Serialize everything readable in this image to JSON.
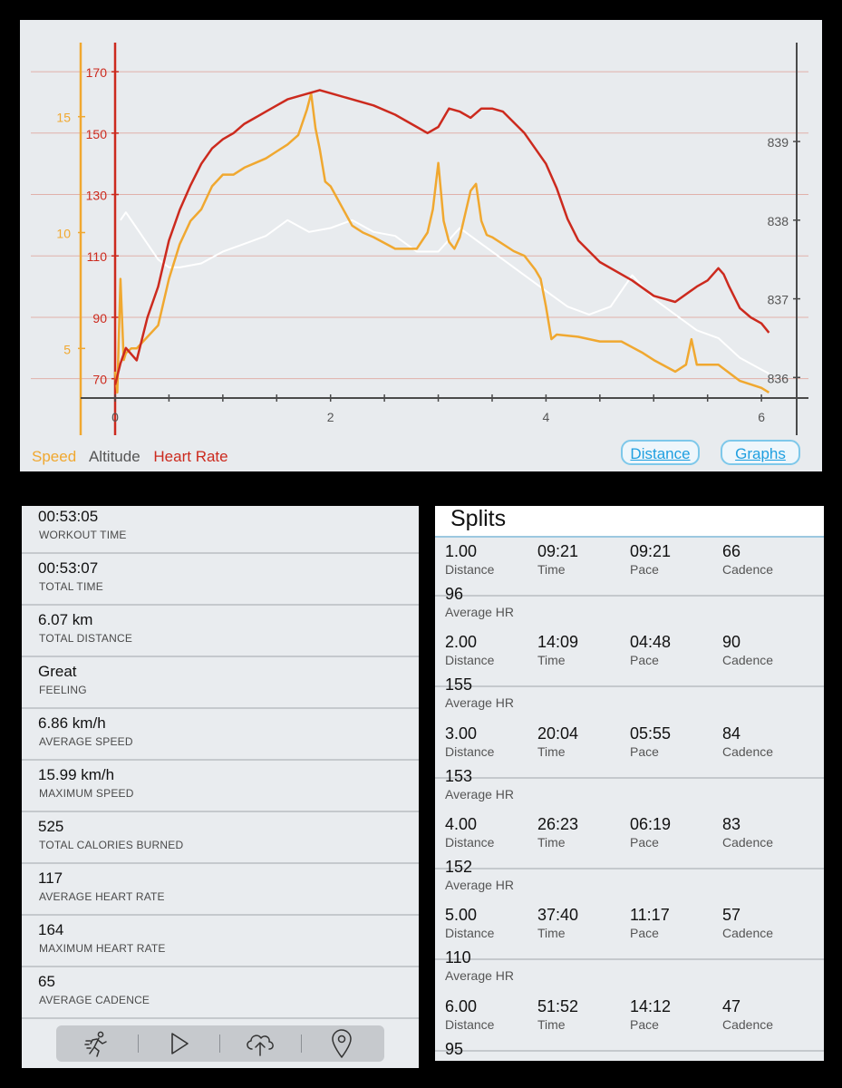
{
  "chart": {
    "legend": {
      "speed": "Speed",
      "altitude": "Altitude",
      "heart_rate": "Heart Rate"
    },
    "buttons": {
      "distance": "Distance",
      "graphs": "Graphs"
    },
    "colors": {
      "speed": "#f0a830",
      "altitude": "#ffffff",
      "heart_rate": "#cc2a1e",
      "axis": "#4a4a4a"
    }
  },
  "chart_data": {
    "type": "line",
    "xlabel": "",
    "xlim": [
      0,
      6.1
    ],
    "x_ticks": [
      "0",
      "2",
      "4",
      "6"
    ],
    "hr_axis": {
      "ticks": [
        "70",
        "90",
        "110",
        "130",
        "150",
        "170"
      ],
      "ylim": [
        64,
        178
      ]
    },
    "speed_axis": {
      "ticks": [
        "5",
        "10",
        "15"
      ],
      "ylim": [
        2.9,
        18.0
      ]
    },
    "altitude_axis": {
      "ticks": [
        "836",
        "837",
        "838",
        "839"
      ],
      "ylim": [
        835.75,
        840.2
      ]
    },
    "legend_position": "bottom-left",
    "grid": "horizontal",
    "series": [
      {
        "name": "Heart Rate",
        "color": "#cc2a1e",
        "x": [
          0,
          0.05,
          0.1,
          0.2,
          0.3,
          0.4,
          0.5,
          0.6,
          0.7,
          0.8,
          0.9,
          1.0,
          1.1,
          1.2,
          1.3,
          1.4,
          1.5,
          1.6,
          1.7,
          1.8,
          1.9,
          2.0,
          2.2,
          2.4,
          2.6,
          2.8,
          2.9,
          3.0,
          3.1,
          3.2,
          3.3,
          3.4,
          3.5,
          3.6,
          3.8,
          4.0,
          4.1,
          4.2,
          4.3,
          4.5,
          4.8,
          5.0,
          5.2,
          5.4,
          5.5,
          5.6,
          5.65,
          5.7,
          5.8,
          5.9,
          6.0,
          6.07
        ],
        "values": [
          68,
          75,
          80,
          76,
          90,
          100,
          115,
          125,
          133,
          140,
          145,
          148,
          150,
          153,
          155,
          157,
          159,
          161,
          162,
          163,
          164,
          163,
          161,
          159,
          156,
          152,
          150,
          152,
          158,
          157,
          155,
          158,
          158,
          157,
          150,
          140,
          132,
          122,
          115,
          108,
          102,
          97,
          95,
          100,
          102,
          106,
          104,
          100,
          93,
          90,
          88,
          85
        ]
      },
      {
        "name": "Speed",
        "color": "#f0a830",
        "x": [
          0,
          0.02,
          0.05,
          0.08,
          0.1,
          0.15,
          0.2,
          0.3,
          0.4,
          0.5,
          0.6,
          0.7,
          0.8,
          0.9,
          1.0,
          1.1,
          1.2,
          1.3,
          1.4,
          1.5,
          1.6,
          1.7,
          1.78,
          1.82,
          1.86,
          1.9,
          1.95,
          2.0,
          2.2,
          2.3,
          2.4,
          2.6,
          2.8,
          2.9,
          2.95,
          3.0,
          3.05,
          3.1,
          3.15,
          3.2,
          3.3,
          3.35,
          3.4,
          3.45,
          3.5,
          3.7,
          3.8,
          3.9,
          3.95,
          4.0,
          4.05,
          4.1,
          4.3,
          4.5,
          4.7,
          4.9,
          5.0,
          5.2,
          5.3,
          5.35,
          5.4,
          5.6,
          5.8,
          6.0,
          6.07
        ],
        "values": [
          4.0,
          3.1,
          8.0,
          4.5,
          4.8,
          5.0,
          5.0,
          5.5,
          6.0,
          8.0,
          9.5,
          10.5,
          11.0,
          12.0,
          12.5,
          12.5,
          12.8,
          13.0,
          13.2,
          13.5,
          13.8,
          14.2,
          15.3,
          16.0,
          14.5,
          13.6,
          12.2,
          12.0,
          10.3,
          10.0,
          9.8,
          9.3,
          9.3,
          10.0,
          11.0,
          13.0,
          10.5,
          9.6,
          9.3,
          9.8,
          11.8,
          12.1,
          10.5,
          9.9,
          9.8,
          9.2,
          9.0,
          8.4,
          8.0,
          6.8,
          5.4,
          5.6,
          5.5,
          5.3,
          5.3,
          4.8,
          4.5,
          4.0,
          4.3,
          5.4,
          4.3,
          4.3,
          3.6,
          3.3,
          3.1
        ]
      },
      {
        "name": "Altitude",
        "color": "#ffffff",
        "x": [
          0.05,
          0.1,
          0.2,
          0.3,
          0.4,
          0.5,
          0.6,
          0.8,
          1.0,
          1.2,
          1.4,
          1.6,
          1.8,
          2.0,
          2.2,
          2.4,
          2.6,
          2.8,
          3.0,
          3.2,
          3.4,
          3.6,
          3.8,
          4.0,
          4.2,
          4.4,
          4.6,
          4.8,
          5.0,
          5.2,
          5.4,
          5.6,
          5.8,
          6.0,
          6.07
        ],
        "values": [
          838.0,
          838.1,
          837.9,
          837.7,
          837.5,
          837.4,
          837.4,
          837.45,
          837.6,
          837.7,
          837.8,
          838.0,
          837.85,
          837.9,
          838.0,
          837.85,
          837.8,
          837.6,
          837.6,
          837.9,
          837.7,
          837.5,
          837.3,
          837.1,
          836.9,
          836.8,
          836.9,
          837.3,
          837.0,
          836.8,
          836.6,
          836.5,
          836.25,
          836.1,
          836.05
        ]
      }
    ]
  },
  "stats": [
    {
      "value": "00:53:05",
      "label": "WORKOUT TIME"
    },
    {
      "value": "00:53:07",
      "label": "TOTAL TIME"
    },
    {
      "value": "6.07 km",
      "label": "TOTAL DISTANCE"
    },
    {
      "value": "Great",
      "label": "FEELING"
    },
    {
      "value": "6.86 km/h",
      "label": "AVERAGE SPEED"
    },
    {
      "value": "15.99 km/h",
      "label": "MAXIMUM SPEED"
    },
    {
      "value": "525",
      "label": "TOTAL CALORIES BURNED"
    },
    {
      "value": "117",
      "label": "AVERAGE HEART RATE"
    },
    {
      "value": "164",
      "label": "MAXIMUM HEART RATE"
    },
    {
      "value": "65",
      "label": "AVERAGE CADENCE"
    }
  ],
  "tabbar": {
    "icons": [
      "runner-icon",
      "play-icon",
      "cloud-upload-icon",
      "map-pin-icon"
    ]
  },
  "splits": {
    "title": "Splits",
    "labels": {
      "distance": "Distance",
      "time": "Time",
      "pace": "Pace",
      "cadence": "Cadence",
      "avg_hr": "Average HR"
    },
    "rows": [
      {
        "distance": "1.00",
        "time": "09:21",
        "pace": "09:21",
        "cadence": "66",
        "avg_hr": "96"
      },
      {
        "distance": "2.00",
        "time": "14:09",
        "pace": "04:48",
        "cadence": "90",
        "avg_hr": "155"
      },
      {
        "distance": "3.00",
        "time": "20:04",
        "pace": "05:55",
        "cadence": "84",
        "avg_hr": "153"
      },
      {
        "distance": "4.00",
        "time": "26:23",
        "pace": "06:19",
        "cadence": "83",
        "avg_hr": "152"
      },
      {
        "distance": "5.00",
        "time": "37:40",
        "pace": "11:17",
        "cadence": "57",
        "avg_hr": "110"
      },
      {
        "distance": "6.00",
        "time": "51:52",
        "pace": "14:12",
        "cadence": "47",
        "avg_hr": "95"
      }
    ]
  }
}
